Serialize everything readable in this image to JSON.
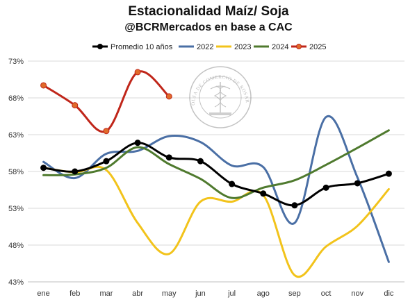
{
  "chart_data": {
    "type": "line",
    "title": "Estacionalidad Maíz/ Soja",
    "subtitle": "@BCRMercados en base a CAC",
    "categories": [
      "ene",
      "feb",
      "mar",
      "abr",
      "may",
      "jun",
      "jul",
      "ago",
      "sep",
      "oct",
      "nov",
      "dic"
    ],
    "ylim": [
      43,
      73
    ],
    "yticks": [
      "43%",
      "48%",
      "53%",
      "58%",
      "63%",
      "68%",
      "73%"
    ],
    "grid": "horizontal",
    "legend_position": "top",
    "watermark_text": "BOLSA DE COMERCIO DE ROSARIO",
    "series": [
      {
        "name": "Promedio 10 años",
        "color": "#000000",
        "markers": true,
        "values": [
          58.5,
          58.0,
          59.4,
          61.9,
          59.9,
          59.4,
          56.3,
          55.0,
          53.4,
          55.8,
          56.4,
          57.7
        ]
      },
      {
        "name": "2022",
        "color": "#4a6fa5",
        "markers": false,
        "values": [
          59.3,
          57.1,
          60.4,
          60.8,
          62.8,
          62.0,
          58.8,
          58.6,
          51.0,
          65.4,
          57.2,
          45.7
        ]
      },
      {
        "name": "2023",
        "color": "#f2c31b",
        "markers": false,
        "values": [
          58.5,
          57.9,
          58.2,
          51.0,
          46.8,
          53.9,
          53.9,
          54.8,
          43.9,
          47.8,
          50.6,
          55.6
        ]
      },
      {
        "name": "2024",
        "color": "#4f7a2e",
        "markers": false,
        "values": [
          57.5,
          57.6,
          58.5,
          61.3,
          59.0,
          57.0,
          54.4,
          55.8,
          56.8,
          58.9,
          61.2,
          63.6
        ]
      },
      {
        "name": "2025",
        "color": "#c0261a",
        "markers": true,
        "markerColor": "#e06b2a",
        "values": [
          69.7,
          67.0,
          63.5,
          71.5,
          68.2,
          null,
          null,
          null,
          null,
          null,
          null,
          null
        ]
      }
    ]
  }
}
